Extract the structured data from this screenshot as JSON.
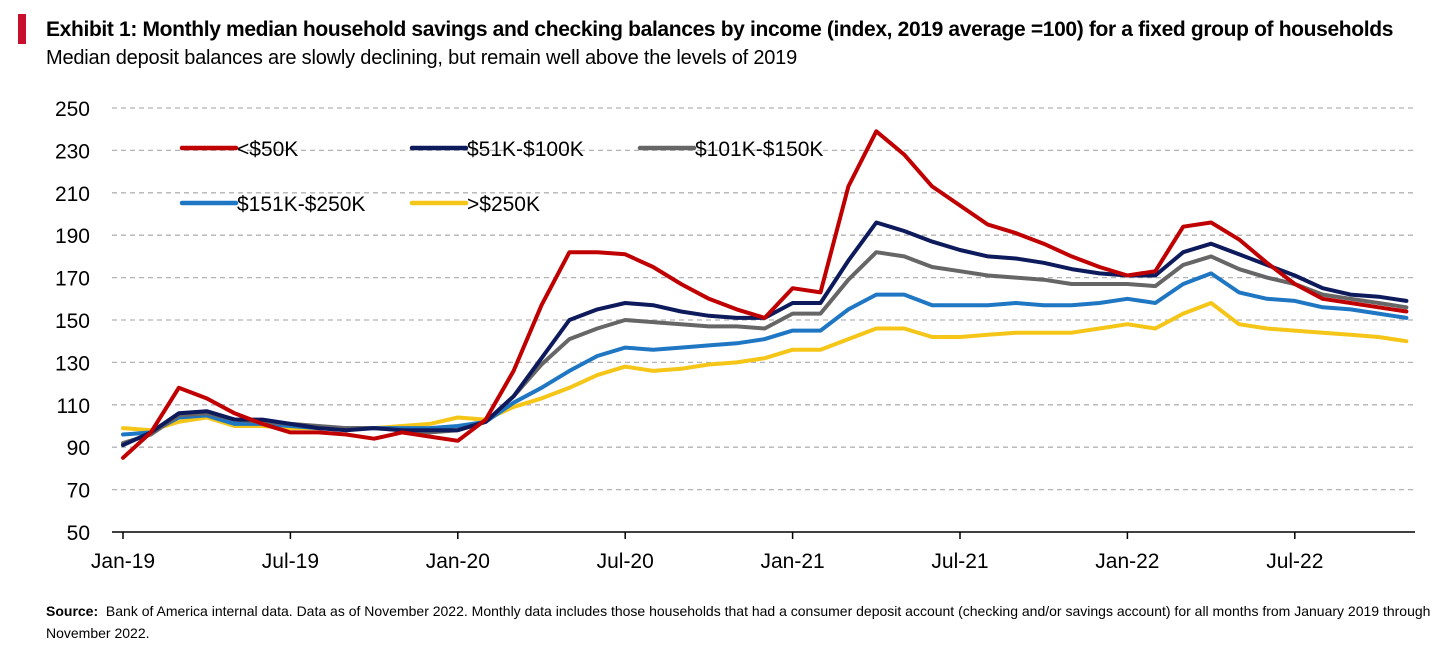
{
  "header": {
    "title": "Exhibit 1: Monthly median household savings and checking balances by income (index, 2019 average =100)  for a fixed group of households",
    "subtitle": "Median deposit balances are slowly declining, but remain well above the levels of 2019",
    "accent_color": "#c8102e"
  },
  "footer": {
    "source_label": "Source:",
    "source_text": "Bank of America internal data. Data as of November 2022. Monthly data includes those households  that had a consumer  deposit account  (checking and/or savings account)  for all months from January 2019 through  November 2022."
  },
  "chart_data": {
    "type": "line",
    "x": [
      "2019-01",
      "2019-02",
      "2019-03",
      "2019-04",
      "2019-05",
      "2019-06",
      "2019-07",
      "2019-08",
      "2019-09",
      "2019-10",
      "2019-11",
      "2019-12",
      "2020-01",
      "2020-02",
      "2020-03",
      "2020-04",
      "2020-05",
      "2020-06",
      "2020-07",
      "2020-08",
      "2020-09",
      "2020-10",
      "2020-11",
      "2020-12",
      "2021-01",
      "2021-02",
      "2021-03",
      "2021-04",
      "2021-05",
      "2021-06",
      "2021-07",
      "2021-08",
      "2021-09",
      "2021-10",
      "2021-11",
      "2021-12",
      "2022-01",
      "2022-02",
      "2022-03",
      "2022-04",
      "2022-05",
      "2022-06",
      "2022-07",
      "2022-08",
      "2022-09",
      "2022-10",
      "2022-11"
    ],
    "x_tick_labels": [
      "Jan-19",
      "Jul-19",
      "Jan-20",
      "Jul-20",
      "Jan-21",
      "Jul-21",
      "Jan-22",
      "Jul-22"
    ],
    "y_ticks": [
      50,
      70,
      90,
      110,
      130,
      150,
      170,
      190,
      210,
      230,
      250
    ],
    "ylim": [
      50,
      250
    ],
    "grid": true,
    "legend_position": "top-left, inside plot",
    "series": [
      {
        "name": "<$50K",
        "color": "#c00000",
        "values": [
          85,
          97,
          118,
          113,
          106,
          101,
          97,
          97,
          96,
          94,
          97,
          95,
          93,
          103,
          126,
          157,
          182,
          182,
          181,
          175,
          167,
          160,
          155,
          151,
          165,
          163,
          213,
          239,
          228,
          213,
          204,
          195,
          191,
          186,
          180,
          175,
          171,
          173,
          194,
          196,
          188,
          177,
          167,
          160,
          158,
          156,
          154
        ]
      },
      {
        "name": "$51K-$100K",
        "color": "#0d1a5c",
        "values": [
          91,
          97,
          106,
          107,
          103,
          103,
          101,
          99,
          98,
          99,
          98,
          98,
          98,
          102,
          114,
          132,
          150,
          155,
          158,
          157,
          154,
          152,
          151,
          151,
          158,
          158,
          178,
          196,
          192,
          187,
          183,
          180,
          179,
          177,
          174,
          172,
          171,
          171,
          182,
          186,
          181,
          176,
          171,
          165,
          162,
          161,
          159
        ]
      },
      {
        "name": "$101K-$150K",
        "color": "#666666",
        "values": [
          92,
          96,
          105,
          106,
          103,
          102,
          101,
          100,
          99,
          99,
          98,
          97,
          98,
          102,
          114,
          129,
          141,
          146,
          150,
          149,
          148,
          147,
          147,
          146,
          153,
          153,
          169,
          182,
          180,
          175,
          173,
          171,
          170,
          169,
          167,
          167,
          167,
          166,
          176,
          180,
          174,
          170,
          167,
          162,
          160,
          158,
          156
        ]
      },
      {
        "name": "$151K-$250K",
        "color": "#1f77c4",
        "values": [
          96,
          97,
          104,
          105,
          101,
          101,
          100,
          99,
          99,
          99,
          99,
          99,
          100,
          102,
          111,
          118,
          126,
          133,
          137,
          136,
          137,
          138,
          139,
          141,
          145,
          145,
          155,
          162,
          162,
          157,
          157,
          157,
          158,
          157,
          157,
          158,
          160,
          158,
          167,
          172,
          163,
          160,
          159,
          156,
          155,
          153,
          151
        ]
      },
      {
        "name": ">$250K",
        "color": "#f5c518",
        "values": [
          99,
          98,
          102,
          104,
          100,
          100,
          99,
          99,
          99,
          99,
          100,
          101,
          104,
          103,
          109,
          113,
          118,
          124,
          128,
          126,
          127,
          129,
          130,
          132,
          136,
          136,
          141,
          146,
          146,
          142,
          142,
          143,
          144,
          144,
          144,
          146,
          148,
          146,
          153,
          158,
          148,
          146,
          145,
          144,
          143,
          142,
          140
        ]
      }
    ]
  }
}
